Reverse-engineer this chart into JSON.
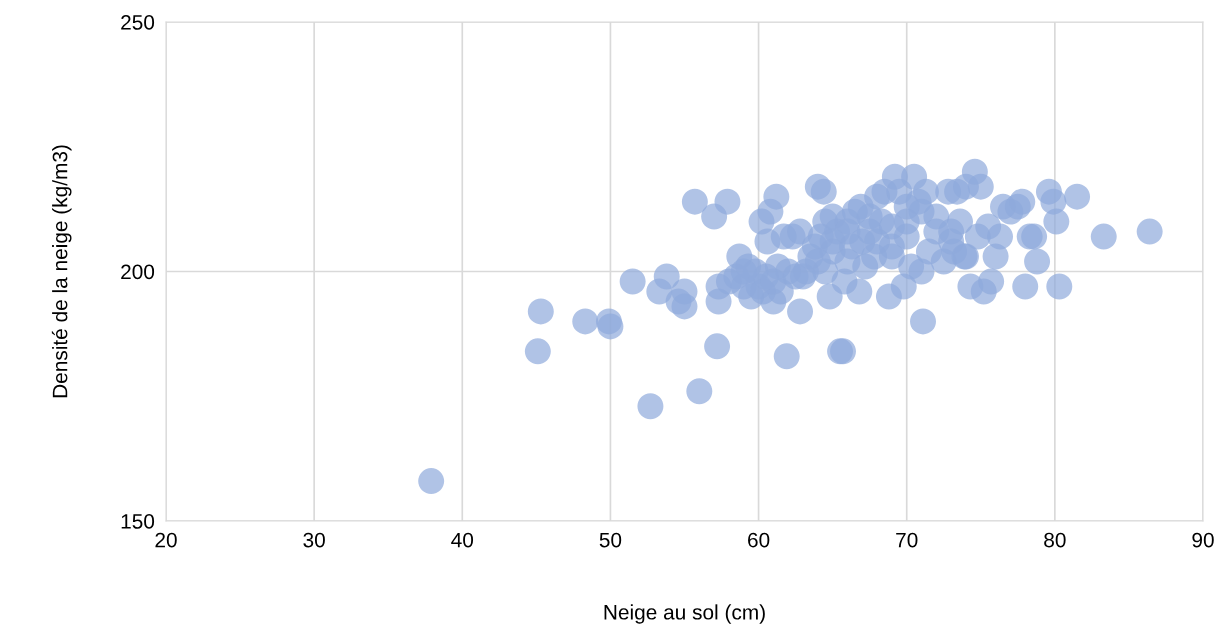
{
  "chart_data": {
    "type": "scatter",
    "xlabel": "Neige au sol (cm)",
    "ylabel": "Densité de la neige (kg/m3)",
    "xlim": [
      20,
      90
    ],
    "xticks": [
      20,
      30,
      40,
      50,
      60,
      70,
      80,
      90
    ],
    "ylim": [
      150,
      250
    ],
    "yticks": [
      150,
      200,
      250
    ],
    "grid": true,
    "marker": "circle",
    "series": [
      {
        "color": "#8faadc",
        "x": [
          37.9,
          45.1,
          45.3,
          48.3,
          49.9,
          50.0,
          51.5,
          52.7,
          53.3,
          53.8,
          54.6,
          55.0,
          55.0,
          56.0,
          55.7,
          57.0,
          57.3,
          57.2,
          57.3,
          57.9,
          58.0,
          58.5,
          58.7,
          59.0,
          59.3,
          59.5,
          59.8,
          60.0,
          60.2,
          60.3,
          60.6,
          60.8,
          61.0,
          61.2,
          61.3,
          61.5,
          61.7,
          61.9,
          62.0,
          62.3,
          62.5,
          62.8,
          62.8,
          63.2,
          63.5,
          63.8,
          64.0,
          64.2,
          64.4,
          64.5,
          64.5,
          64.8,
          65.0,
          65.3,
          65.5,
          65.7,
          65.8,
          66.0,
          66.3,
          66.5,
          66.8,
          66.9,
          67.2,
          67.5,
          67.8,
          68.0,
          68.3,
          68.5,
          68.8,
          69.0,
          69.2,
          69.5,
          69.8,
          70.0,
          70.3,
          70.5,
          70.8,
          71.0,
          71.1,
          71.3,
          71.5,
          72.0,
          72.5,
          72.8,
          73.0,
          73.2,
          73.4,
          73.6,
          73.9,
          74.0,
          74.3,
          74.6,
          74.8,
          75.0,
          75.2,
          75.5,
          75.7,
          76.0,
          76.3,
          76.5,
          77.0,
          77.5,
          77.8,
          78.0,
          78.3,
          78.6,
          78.8,
          79.6,
          79.9,
          80.1,
          80.3,
          81.5,
          83.3,
          86.4,
          64,
          65,
          66,
          67,
          68,
          69,
          70,
          65,
          63,
          60.5,
          59,
          61,
          66,
          67.5,
          72,
          73,
          74,
          71,
          70,
          69
        ],
        "values": [
          158,
          184,
          192,
          190,
          190,
          189,
          198,
          173,
          196,
          199,
          194,
          196,
          193,
          176,
          214,
          211,
          194,
          185,
          197,
          214,
          198,
          199,
          203,
          197,
          201,
          195,
          200,
          197,
          210,
          196,
          206,
          212,
          194,
          215,
          201,
          196,
          207,
          183,
          200,
          207,
          199,
          192,
          208,
          200,
          203,
          205,
          217,
          207,
          216,
          210,
          200,
          195,
          204,
          208,
          184,
          184,
          198,
          210,
          205,
          212,
          196,
          213,
          201,
          208,
          203,
          215,
          210,
          216,
          195,
          205,
          219,
          216,
          197,
          210,
          201,
          219,
          214,
          200,
          190,
          216,
          204,
          211,
          202,
          216,
          208,
          204,
          216,
          210,
          203,
          217,
          197,
          220,
          207,
          217,
          196,
          209,
          198,
          203,
          207,
          213,
          212,
          213,
          214,
          197,
          207,
          207,
          202,
          216,
          214,
          210,
          197,
          215,
          207,
          208,
          202,
          206,
          202,
          206,
          206,
          209,
          207,
          211,
          199,
          199,
          200,
          198,
          208,
          211,
          208,
          206,
          203,
          212,
          213,
          203
        ]
      }
    ]
  }
}
